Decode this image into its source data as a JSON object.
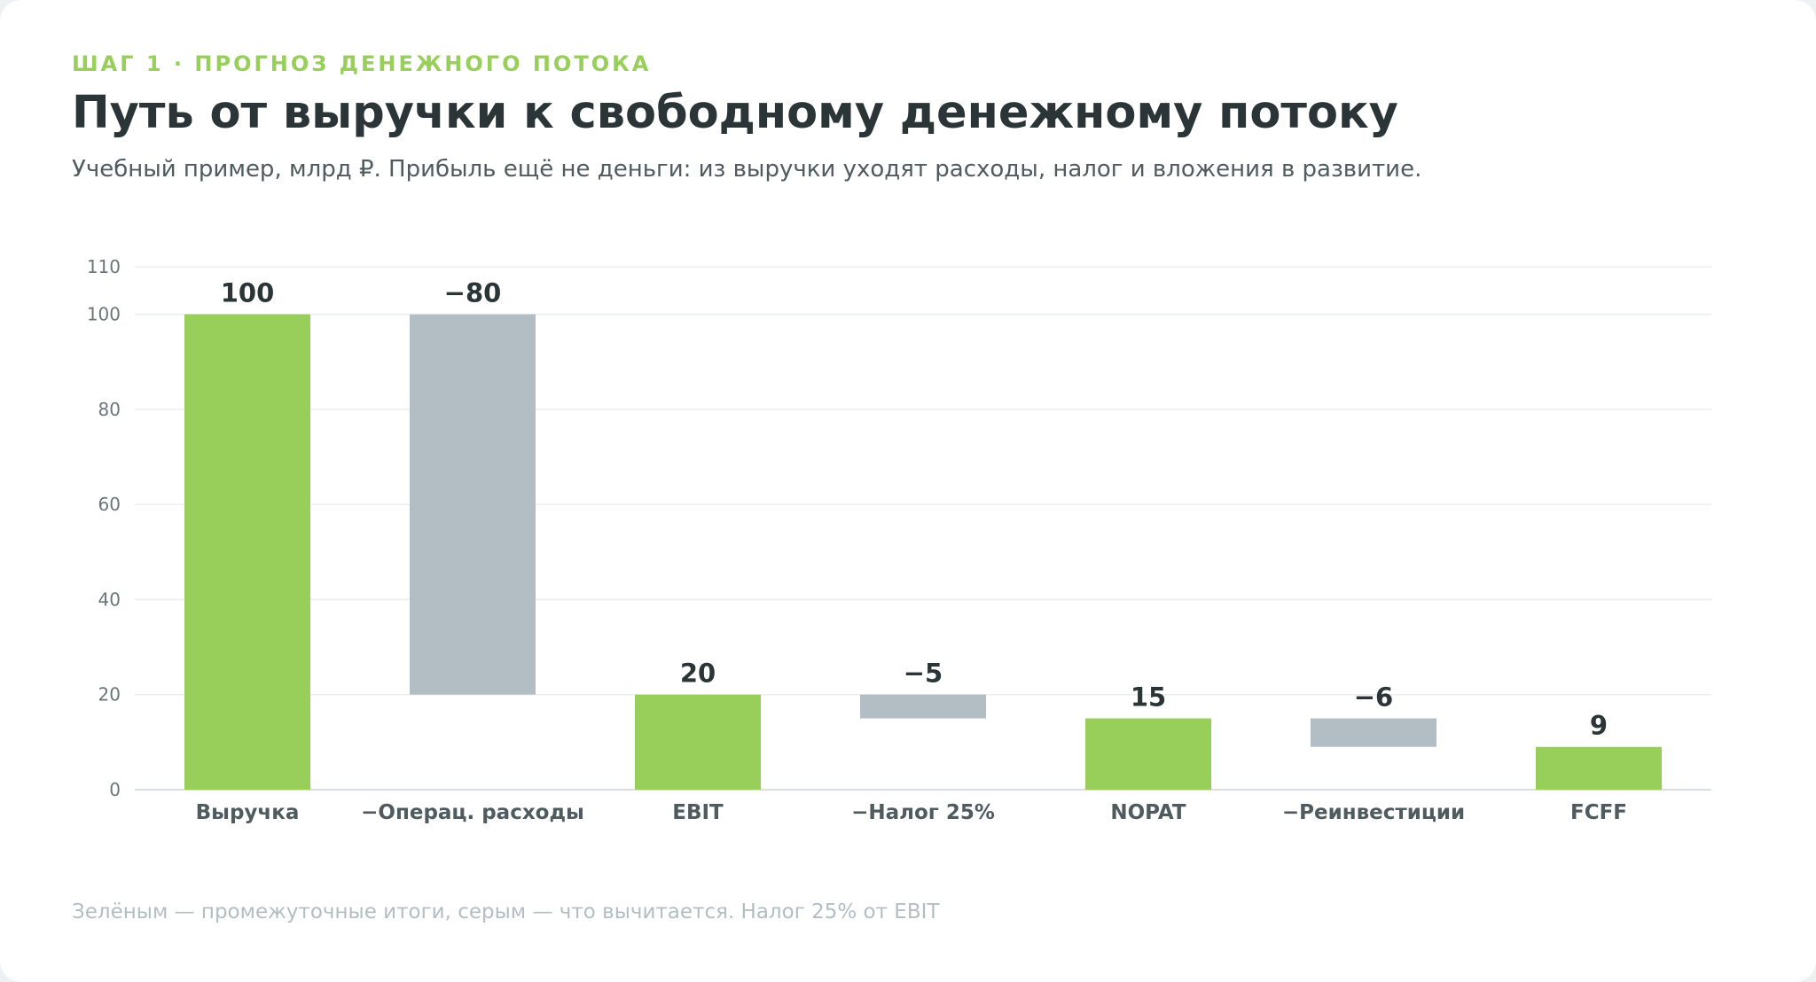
{
  "header": {
    "eyebrow": "ШАГ 1 · ПРОГНОЗ ДЕНЕЖНОГО ПОТОКА",
    "title": "Путь от выручки к свободному денежному потоку",
    "subtitle": "Учебный пример, млрд ₽. Прибыль ещё не деньги: из выручки уходят расходы, налог и вложения в развитие."
  },
  "footnote": "Зелёным — промежуточные итоги, серым — что вычитается. Налог 25% от EBIT",
  "colors": {
    "total": "#97cf5a",
    "deduction": "#b2bec3",
    "grid": "#ebeef0",
    "baseline": "#d9dee0"
  },
  "chart_data": {
    "type": "bar",
    "subtype": "waterfall",
    "categories": [
      "Выручка",
      "−Операц. расходы",
      "EBIT",
      "−Налог 25%",
      "NOPAT",
      "−Реинвестиции",
      "FCFF"
    ],
    "bars": [
      {
        "category": "Выручка",
        "kind": "total",
        "start": 0,
        "end": 100,
        "label": "100"
      },
      {
        "category": "−Операц. расходы",
        "kind": "deduction",
        "start": 100,
        "end": 20,
        "label": "−80"
      },
      {
        "category": "EBIT",
        "kind": "total",
        "start": 0,
        "end": 20,
        "label": "20"
      },
      {
        "category": "−Налог 25%",
        "kind": "deduction",
        "start": 20,
        "end": 15,
        "label": "−5"
      },
      {
        "category": "NOPAT",
        "kind": "total",
        "start": 0,
        "end": 15,
        "label": "15"
      },
      {
        "category": "−Реинвестиции",
        "kind": "deduction",
        "start": 15,
        "end": 9,
        "label": "−6"
      },
      {
        "category": "FCFF",
        "kind": "total",
        "start": 0,
        "end": 9,
        "label": "9"
      }
    ],
    "yticks": [
      0,
      20,
      40,
      60,
      80,
      100,
      110
    ],
    "ylim": [
      0,
      110
    ],
    "grid": true,
    "legend": "none"
  }
}
